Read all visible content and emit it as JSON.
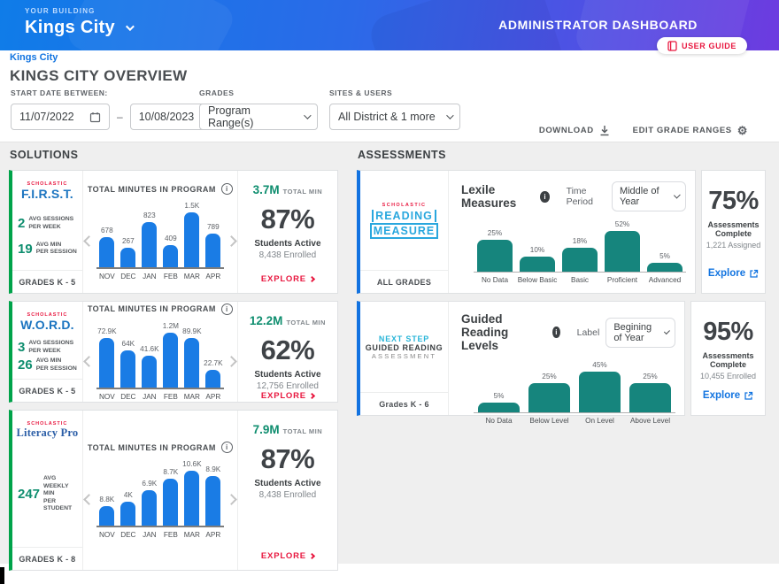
{
  "header": {
    "building_label": "YOUR BUILDING",
    "building_name": "Kings City",
    "dashboard_title": "ADMINISTRATOR DASHBOARD",
    "user_guide_label": "USER GUIDE"
  },
  "breadcrumb": {
    "label": "Kings City"
  },
  "page": {
    "title": "KINGS CITY OVERVIEW"
  },
  "filters": {
    "start_date_label": "START DATE BETWEEN:",
    "date_from": "11/07/2022",
    "date_separator": "–",
    "date_to": "10/08/2023",
    "grades_label": "GRADES",
    "grades_value": "Program Range(s)",
    "sites_label": "SITES & USERS",
    "sites_value": "All District & 1 more"
  },
  "actions": {
    "download_label": "DOWNLOAD",
    "edit_grade_ranges_label": "EDIT GRADE RANGES"
  },
  "solutions": {
    "heading": "SOLUTIONS",
    "cards": [
      {
        "brand_sub": "SCHOLASTIC",
        "brand": "F.I.R.S.T.",
        "stats": [
          {
            "value": "2",
            "label": "AVG SESSIONS\nPER WEEK"
          },
          {
            "value": "19",
            "label": "AVG MIN\nPER SESSION"
          }
        ],
        "grades": "GRADES K - 5",
        "total_value": "3.7M",
        "total_label": "TOTAL MIN",
        "percent": "87%",
        "percent_sub": "Students Active",
        "enrolled": "8,438 Enrolled",
        "explore_label": "EXPLORE"
      },
      {
        "brand_sub": "SCHOLASTIC",
        "brand": "W.O.R.D.",
        "stats": [
          {
            "value": "3",
            "label": "AVG SESSIONS\nPER WEEK"
          },
          {
            "value": "26",
            "label": "AVG MIN\nPER SESSION"
          }
        ],
        "grades": "GRADES K - 5",
        "total_value": "12.2M",
        "total_label": "TOTAL MIN",
        "percent": "62%",
        "percent_sub": "Students Active",
        "enrolled": "12,756 Enrolled",
        "explore_label": "EXPLORE"
      },
      {
        "brand_sub": "SCHOLASTIC",
        "brand": "Literacy Pro",
        "stats": [
          {
            "value": "247",
            "label": "AVG WEEKLY MIN\nPER STUDENT"
          }
        ],
        "grades": "GRADES K - 8",
        "total_value": "7.9M",
        "total_label": "TOTAL MIN",
        "percent": "87%",
        "percent_sub": "Students Active",
        "enrolled": "8,438 Enrolled",
        "explore_label": "EXPLORE"
      }
    ]
  },
  "assessments": {
    "heading": "ASSESSMENTS",
    "cards": [
      {
        "brand_sub": "SCHOLASTIC",
        "brand_lines": [
          "READING",
          "MEASURE"
        ],
        "brand_style": "srm",
        "grades": "ALL GRADES",
        "dropdown_label": "Time Period",
        "dropdown_value": "Middle of Year",
        "percent": "75%",
        "percent_sub": "Assessments\nComplete",
        "assigned": "1,221 Assigned",
        "explore_label": "Explore"
      },
      {
        "brand_lines": [
          "NEXT STEP",
          "GUIDED READING",
          "ASSESSMENT"
        ],
        "brand_style": "nsgra",
        "grades": "Grades K - 6",
        "dropdown_label": "Label",
        "dropdown_value": "Begining of Year",
        "percent": "95%",
        "percent_sub": "Assessments\nComplete",
        "assigned": "10,455 Enrolled",
        "explore_label": "Explore"
      }
    ]
  },
  "chart_data": [
    {
      "type": "bar",
      "title": "TOTAL MINUTES IN PROGRAM",
      "categories": [
        "NOV",
        "DEC",
        "JAN",
        "FEB",
        "MAR",
        "APR"
      ],
      "values": [
        678,
        267,
        823,
        409,
        1500,
        789
      ],
      "value_labels": [
        "678",
        "267",
        "823",
        "409",
        "1.5K",
        "789"
      ],
      "bar_heights_pct": [
        55,
        35,
        83,
        40,
        100,
        62
      ],
      "color": "#1a7ce5",
      "ylabel": "",
      "xlabel": "",
      "grid": false,
      "legend": "none"
    },
    {
      "type": "bar",
      "title": "TOTAL MINUTES IN PROGRAM",
      "categories": [
        "NOV",
        "DEC",
        "JAN",
        "FEB",
        "MAR",
        "APR"
      ],
      "values": [
        72900,
        64000,
        41600,
        1200000,
        89900,
        22700
      ],
      "value_labels": [
        "72.9K",
        "64K",
        "41.6K",
        "1.2M",
        "89.9K",
        "22.7K"
      ],
      "bar_heights_pct": [
        90,
        67,
        58,
        100,
        90,
        33
      ],
      "color": "#1a7ce5",
      "ylabel": "",
      "xlabel": "",
      "grid": false,
      "legend": "none"
    },
    {
      "type": "bar",
      "title": "TOTAL MINUTES IN PROGRAM",
      "categories": [
        "NOV",
        "DEC",
        "JAN",
        "FEB",
        "MAR",
        "APR"
      ],
      "values": [
        8800,
        4000,
        6900,
        8700,
        10600,
        8900
      ],
      "value_labels": [
        "8.8K",
        "4K",
        "6.9K",
        "8.7K",
        "10.6K",
        "8.9K"
      ],
      "bar_heights_pct": [
        36,
        44,
        64,
        86,
        100,
        90
      ],
      "color": "#1a7ce5",
      "ylabel": "",
      "xlabel": "",
      "grid": false,
      "legend": "none"
    },
    {
      "type": "bar",
      "title": "Lexile Measures",
      "categories": [
        "No Data",
        "Below Basic",
        "Basic",
        "Proficient",
        "Advanced"
      ],
      "values": [
        25,
        10,
        18,
        52,
        5
      ],
      "value_labels": [
        "25%",
        "10%",
        "18%",
        "52%",
        "5%"
      ],
      "bar_heights_pct": [
        78,
        36,
        58,
        100,
        22
      ],
      "color": "#16857d",
      "ylabel": "",
      "xlabel": "",
      "grid": false,
      "legend": "none"
    },
    {
      "type": "bar",
      "title": "Guided Reading Levels",
      "categories": [
        "No Data",
        "Below Level",
        "On Level",
        "Above Level"
      ],
      "values": [
        5,
        25,
        45,
        25
      ],
      "value_labels": [
        "5%",
        "25%",
        "45%",
        "25%"
      ],
      "bar_heights_pct": [
        24,
        71,
        100,
        71
      ],
      "color": "#16857d",
      "ylabel": "",
      "xlabel": "",
      "grid": false,
      "legend": "none"
    }
  ]
}
